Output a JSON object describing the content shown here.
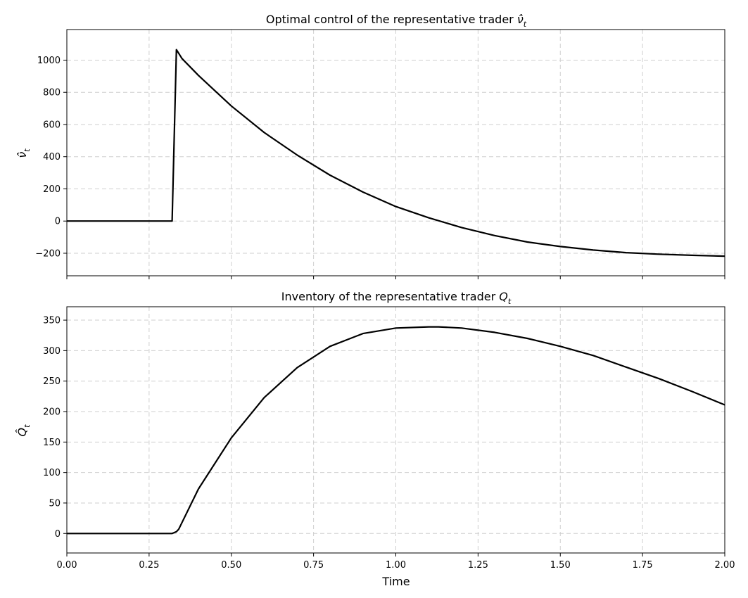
{
  "chart_data": [
    {
      "type": "line",
      "title": "Optimal control of the representative trader ",
      "title_symbol": "ν̂",
      "title_subscript": "t",
      "ylabel_symbol": "ν̂",
      "ylabel_subscript": "t",
      "xlabel": "",
      "xlim": [
        0,
        2
      ],
      "ylim": [
        -340,
        1190
      ],
      "grid": true,
      "xticks": [
        0,
        0.25,
        0.5,
        0.75,
        1.0,
        1.25,
        1.5,
        1.75,
        2.0
      ],
      "yticks": [
        -200,
        0,
        200,
        400,
        600,
        800,
        1000
      ],
      "ytick_labels": [
        "−200",
        "0",
        "200",
        "400",
        "600",
        "800",
        "1000"
      ],
      "series": [
        {
          "color": "#000000",
          "x": [
            0,
            0.1,
            0.2,
            0.3,
            0.32,
            0.333,
            0.35,
            0.4,
            0.5,
            0.6,
            0.7,
            0.8,
            0.9,
            1.0,
            1.1,
            1.2,
            1.3,
            1.4,
            1.5,
            1.6,
            1.7,
            1.8,
            1.9,
            2.0
          ],
          "y": [
            0,
            0,
            0,
            0,
            0,
            1065,
            1010,
            905,
            715,
            550,
            410,
            285,
            180,
            90,
            20,
            -40,
            -90,
            -130,
            -158,
            -180,
            -196,
            -206,
            -213,
            -218
          ]
        }
      ]
    },
    {
      "type": "line",
      "title": "Inventory of the representative trader ",
      "title_symbol": "Q",
      "title_subscript": "t",
      "ylabel_symbol": "Q̂",
      "ylabel_subscript": "t",
      "xlabel": "Time",
      "xlim": [
        0,
        2
      ],
      "ylim": [
        -32,
        372
      ],
      "grid": true,
      "xticks": [
        0,
        0.25,
        0.5,
        0.75,
        1.0,
        1.25,
        1.5,
        1.75,
        2.0
      ],
      "xtick_labels": [
        "0.00",
        "0.25",
        "0.50",
        "0.75",
        "1.00",
        "1.25",
        "1.50",
        "1.75",
        "2.00"
      ],
      "yticks": [
        0,
        50,
        100,
        150,
        200,
        250,
        300,
        350
      ],
      "ytick_labels": [
        "0",
        "50",
        "100",
        "150",
        "200",
        "250",
        "300",
        "350"
      ],
      "series": [
        {
          "color": "#000000",
          "x": [
            0,
            0.1,
            0.2,
            0.3,
            0.32,
            0.333,
            0.34,
            0.4,
            0.5,
            0.6,
            0.7,
            0.8,
            0.9,
            1.0,
            1.1,
            1.13,
            1.2,
            1.3,
            1.4,
            1.5,
            1.6,
            1.7,
            1.8,
            1.9,
            2.0
          ],
          "y": [
            0,
            0,
            0,
            0,
            0,
            3,
            7,
            73,
            157,
            223,
            272,
            307,
            328,
            337,
            339,
            339,
            337,
            330,
            320,
            307,
            292,
            273,
            254,
            233,
            211
          ]
        }
      ]
    }
  ]
}
